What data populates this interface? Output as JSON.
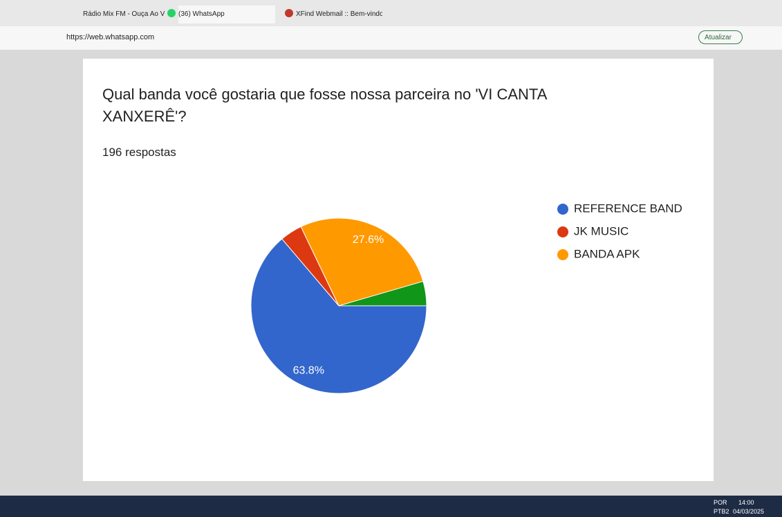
{
  "browser": {
    "tabs": [
      "Rádio Mix FM - Ouça Ao Viv",
      "(36) WhatsApp",
      "XFind Webmail :: Bem-vindo ao X"
    ],
    "url": "https://web.whatsapp.com",
    "update_button": "Atualizar"
  },
  "taskbar": {
    "language": "POR",
    "layout": "PTB2",
    "time": "14:00",
    "date": "04/03/2025"
  },
  "chart_data": {
    "type": "pie",
    "title": "Qual banda você gostaria que fosse nossa parceira no 'VI CANTA XANXERÊ'?",
    "subtitle": "196 respostas",
    "categories": [
      "REFERENCE BAND",
      "JK MUSIC",
      "BANDA APK",
      null
    ],
    "values": [
      63.8,
      4.1,
      27.6,
      4.5
    ],
    "value_labels": [
      "63.8%",
      null,
      "27.6%",
      null
    ],
    "colors": [
      "#3366cc",
      "#dc3912",
      "#ff9900",
      "#109618"
    ]
  }
}
